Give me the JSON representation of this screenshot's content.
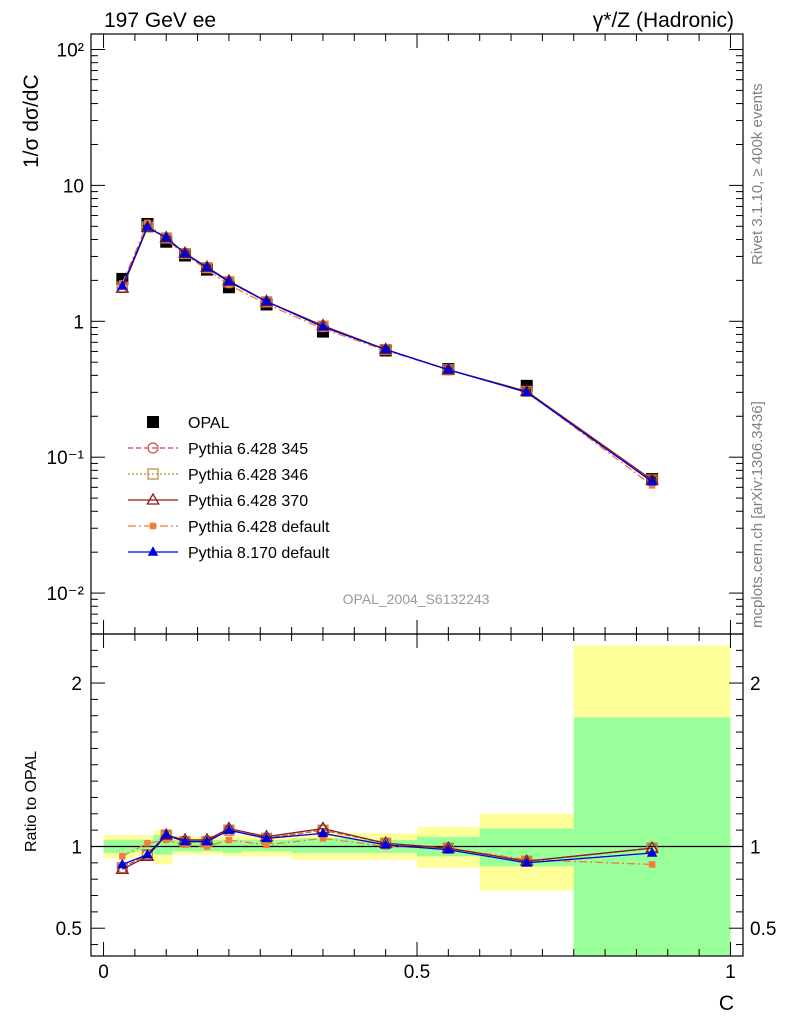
{
  "header": {
    "left": "197 GeV ee",
    "right": "γ*/Z (Hadronic)"
  },
  "side_text": {
    "rivet": "Rivet 3.1.10, ≥ 400k events",
    "mcplots": "mcplots.cern.ch [arXiv:1306.3436]"
  },
  "analysis_label": "OPAL_2004_S6132243",
  "chart_data": [
    {
      "type": "scatter",
      "panel": "main",
      "ylabel": "1/σ dσ/dC",
      "yscale": "log",
      "ylim": [
        0.005,
        130
      ],
      "xlim": [
        -0.02,
        1.02
      ],
      "y_ticks": [
        "10⁻²",
        "10⁻¹",
        "1",
        "10",
        "10²"
      ],
      "legend_position": "lower-left",
      "x": [
        0.03,
        0.07,
        0.1,
        0.13,
        0.165,
        0.2,
        0.26,
        0.35,
        0.45,
        0.55,
        0.675,
        0.875
      ],
      "series": [
        {
          "name": "OPAL",
          "marker": "square",
          "color": "#000000",
          "line": "none",
          "values": [
            2.05,
            5.2,
            3.85,
            3.05,
            2.4,
            1.78,
            1.33,
            0.84,
            0.61,
            0.445,
            0.335,
            0.069
          ]
        },
        {
          "name": "Pythia 6.428 345",
          "marker": "circle-open",
          "color": "#c84a5a",
          "line": "dashed",
          "values": [
            1.78,
            4.95,
            4.1,
            3.15,
            2.48,
            1.95,
            1.39,
            0.92,
            0.62,
            0.44,
            0.305,
            0.068
          ]
        },
        {
          "name": "Pythia 6.428 346",
          "marker": "square-open",
          "color": "#b8863b",
          "line": "dotted",
          "values": [
            1.78,
            4.95,
            4.1,
            3.15,
            2.48,
            1.95,
            1.39,
            0.92,
            0.62,
            0.44,
            0.305,
            0.068
          ]
        },
        {
          "name": "Pythia 6.428 370",
          "marker": "triangle-open",
          "color": "#8b1a1a",
          "line": "solid",
          "values": [
            1.75,
            4.9,
            4.12,
            3.17,
            2.5,
            1.98,
            1.4,
            0.93,
            0.62,
            0.44,
            0.305,
            0.068
          ]
        },
        {
          "name": "Pythia 6.428 default",
          "marker": "square-small",
          "color": "#f47c3c",
          "line": "dashdot",
          "values": [
            1.9,
            5.3,
            4.0,
            3.1,
            2.4,
            1.85,
            1.34,
            0.88,
            0.61,
            0.44,
            0.305,
            0.062
          ]
        },
        {
          "name": "Pythia 8.170 default",
          "marker": "triangle",
          "color": "#0000dd",
          "line": "solid",
          "values": [
            1.82,
            4.95,
            4.12,
            3.15,
            2.48,
            1.96,
            1.4,
            0.91,
            0.62,
            0.44,
            0.3,
            0.066
          ]
        }
      ]
    },
    {
      "type": "line",
      "panel": "ratio",
      "ylabel": "Ratio to OPAL",
      "xlabel": "C",
      "ylim": [
        0.33,
        2.3
      ],
      "xlim": [
        -0.02,
        1.02
      ],
      "y_ticks": [
        "0.5",
        "1",
        "2"
      ],
      "x_ticks": [
        "0",
        "0.5",
        "1"
      ],
      "reference_line": 1,
      "bins": [
        {
          "lo": 0.0,
          "hi": 0.05,
          "inner": [
            0.96,
            1.04
          ],
          "outer": [
            0.93,
            1.07
          ]
        },
        {
          "lo": 0.05,
          "hi": 0.08,
          "inner": [
            0.97,
            1.04
          ],
          "outer": [
            0.94,
            1.07
          ]
        },
        {
          "lo": 0.08,
          "hi": 0.11,
          "inner": [
            0.95,
            1.07
          ],
          "outer": [
            0.89,
            1.1
          ]
        },
        {
          "lo": 0.11,
          "hi": 0.15,
          "inner": [
            0.97,
            1.04
          ],
          "outer": [
            0.95,
            1.06
          ]
        },
        {
          "lo": 0.15,
          "hi": 0.19,
          "inner": [
            0.97,
            1.04
          ],
          "outer": [
            0.95,
            1.06
          ]
        },
        {
          "lo": 0.19,
          "hi": 0.22,
          "inner": [
            0.96,
            1.04
          ],
          "outer": [
            0.94,
            1.06
          ]
        },
        {
          "lo": 0.22,
          "hi": 0.3,
          "inner": [
            0.97,
            1.04
          ],
          "outer": [
            0.94,
            1.07
          ]
        },
        {
          "lo": 0.3,
          "hi": 0.4,
          "inner": [
            0.96,
            1.05
          ],
          "outer": [
            0.92,
            1.08
          ]
        },
        {
          "lo": 0.4,
          "hi": 0.5,
          "inner": [
            0.96,
            1.04
          ],
          "outer": [
            0.92,
            1.08
          ]
        },
        {
          "lo": 0.5,
          "hi": 0.6,
          "inner": [
            0.94,
            1.06
          ],
          "outer": [
            0.87,
            1.12
          ]
        },
        {
          "lo": 0.6,
          "hi": 0.75,
          "inner": [
            0.88,
            1.11
          ],
          "outer": [
            0.73,
            1.2
          ]
        },
        {
          "lo": 0.75,
          "hi": 1.0,
          "inner": [
            0.33,
            1.79
          ],
          "outer": [
            0.33,
            2.23
          ]
        }
      ],
      "x": [
        0.03,
        0.07,
        0.1,
        0.13,
        0.165,
        0.2,
        0.26,
        0.35,
        0.45,
        0.55,
        0.675,
        0.875
      ],
      "series": [
        {
          "name": "Pythia 6.428 345",
          "color": "#c84a5a",
          "line": "dashed",
          "marker": "circle-open",
          "values": [
            0.87,
            0.95,
            1.07,
            1.03,
            1.03,
            1.1,
            1.05,
            1.1,
            1.02,
            0.99,
            0.91,
            0.99
          ]
        },
        {
          "name": "Pythia 6.428 346",
          "color": "#b8863b",
          "line": "dotted",
          "marker": "square-open",
          "values": [
            0.87,
            0.95,
            1.07,
            1.03,
            1.03,
            1.1,
            1.05,
            1.1,
            1.02,
            0.99,
            0.91,
            0.99
          ]
        },
        {
          "name": "Pythia 6.428 370",
          "color": "#8b1a1a",
          "line": "solid",
          "marker": "triangle-open",
          "values": [
            0.86,
            0.94,
            1.07,
            1.04,
            1.04,
            1.11,
            1.06,
            1.11,
            1.02,
            0.99,
            0.91,
            0.99
          ]
        },
        {
          "name": "Pythia 6.428 default",
          "color": "#f47c3c",
          "line": "dashdot",
          "marker": "square-small",
          "values": [
            0.94,
            1.02,
            1.04,
            1.01,
            1.0,
            1.04,
            1.01,
            1.05,
            1.0,
            0.99,
            0.92,
            0.89
          ]
        },
        {
          "name": "Pythia 8.170 default",
          "color": "#0000dd",
          "line": "solid",
          "marker": "triangle",
          "values": [
            0.89,
            0.95,
            1.07,
            1.03,
            1.03,
            1.1,
            1.05,
            1.08,
            1.01,
            0.98,
            0.9,
            0.96
          ]
        }
      ]
    }
  ]
}
